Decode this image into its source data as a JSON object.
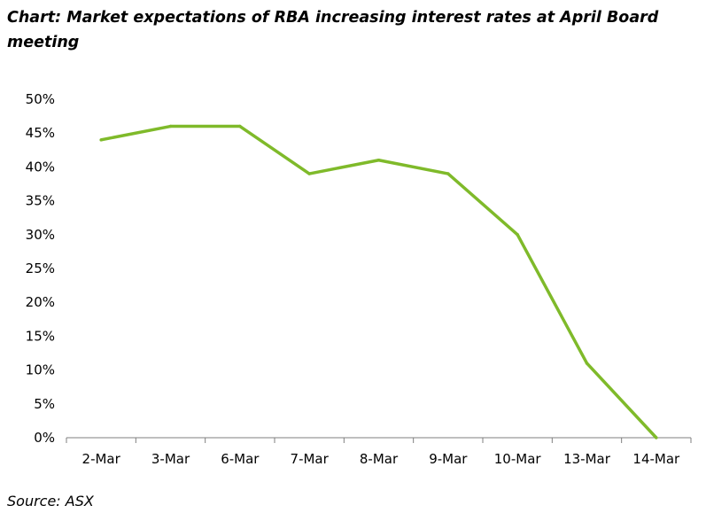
{
  "title": "Chart: Market expectations of RBA increasing interest rates at April Board meeting",
  "source": "Source: ASX",
  "colors": {
    "line": "#7fba2a",
    "axis": "#7f7f7f"
  },
  "chart_data": {
    "type": "line",
    "categories": [
      "2-Mar",
      "3-Mar",
      "6-Mar",
      "7-Mar",
      "8-Mar",
      "9-Mar",
      "10-Mar",
      "13-Mar",
      "14-Mar"
    ],
    "series": [
      {
        "values": [
          44,
          46,
          46,
          39,
          41,
          39,
          30,
          11,
          0
        ]
      }
    ],
    "yticks": [
      "0%",
      "5%",
      "10%",
      "15%",
      "20%",
      "25%",
      "30%",
      "35%",
      "40%",
      "45%",
      "50%"
    ],
    "ylim": [
      0,
      50
    ],
    "grid": false,
    "legend": "none"
  }
}
